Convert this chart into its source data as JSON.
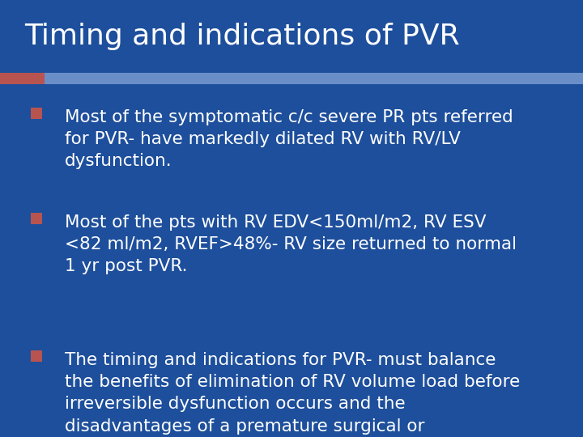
{
  "title": "Timing and indications of PVR",
  "title_fontsize": 26,
  "title_color": "#FFFFFF",
  "background_color": "#1E4F9C",
  "sep_bar_color": "#6A8FC8",
  "accent_bar_color": "#B85450",
  "bullet_box_color": "#B85450",
  "bullet_text_color": "#FFFFFF",
  "bullet_fontsize": 15.5,
  "bullets": [
    "Most of the symptomatic c/c severe PR pts referred\nfor PVR- have markedly dilated RV with RV/LV\ndysfunction.",
    "Most of the pts with RV EDV<150ml/m2, RV ESV\n<82 ml/m2, RVEF>48%- RV size returned to normal\n1 yr post PVR.",
    "The timing and indications for PVR- must balance\nthe benefits of elimination of RV volume load before\nirreversible dysfunction occurs and the\ndisadvantages of a premature surgical or\ntranscatheter procedure."
  ]
}
